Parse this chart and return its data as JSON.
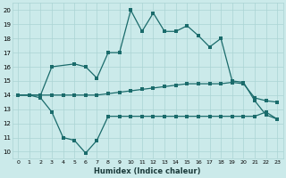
{
  "xlabel": "Humidex (Indice chaleur)",
  "xlim": [
    -0.5,
    23.5
  ],
  "ylim": [
    9.5,
    20.5
  ],
  "yticks": [
    10,
    11,
    12,
    13,
    14,
    15,
    16,
    17,
    18,
    19,
    20
  ],
  "xticks": [
    0,
    1,
    2,
    3,
    4,
    5,
    6,
    7,
    8,
    9,
    10,
    11,
    12,
    13,
    14,
    15,
    16,
    17,
    18,
    19,
    20,
    21,
    22,
    23
  ],
  "bg_color": "#cbeaea",
  "line_color": "#1a6b6b",
  "grid_color": "#aad4d4",
  "line_max_x": [
    0,
    1,
    2,
    3,
    5,
    6,
    7,
    8,
    9,
    10,
    11,
    12,
    13,
    14,
    15,
    16,
    17,
    18,
    19,
    20,
    21,
    22,
    23
  ],
  "line_max_y": [
    14.0,
    14.0,
    14.0,
    16.0,
    16.2,
    16.0,
    15.2,
    17.0,
    17.0,
    20.0,
    18.5,
    19.8,
    18.5,
    18.5,
    18.9,
    18.2,
    17.4,
    18.0,
    15.0,
    14.9,
    13.6,
    12.6,
    12.3
  ],
  "line_mean_x": [
    0,
    1,
    2,
    3,
    4,
    5,
    6,
    7,
    8,
    9,
    10,
    11,
    12,
    13,
    14,
    15,
    16,
    17,
    18,
    19,
    20,
    21,
    22,
    23
  ],
  "line_mean_y": [
    14.0,
    14.0,
    14.0,
    14.0,
    14.0,
    14.0,
    14.0,
    14.0,
    14.1,
    14.2,
    14.3,
    14.4,
    14.5,
    14.6,
    14.7,
    14.8,
    14.8,
    14.8,
    14.8,
    14.9,
    14.8,
    13.8,
    13.6,
    13.5
  ],
  "line_min_x": [
    0,
    1,
    2,
    3,
    4,
    5,
    6,
    7,
    8,
    9,
    10,
    11,
    12,
    13,
    14,
    15,
    16,
    17,
    18,
    19,
    20,
    21,
    22,
    23
  ],
  "line_min_y": [
    14.0,
    14.0,
    13.8,
    12.8,
    11.0,
    10.8,
    9.9,
    10.8,
    12.5,
    12.5,
    12.5,
    12.5,
    12.5,
    12.5,
    12.5,
    12.5,
    12.5,
    12.5,
    12.5,
    12.5,
    12.5,
    12.5,
    12.8,
    12.3
  ]
}
